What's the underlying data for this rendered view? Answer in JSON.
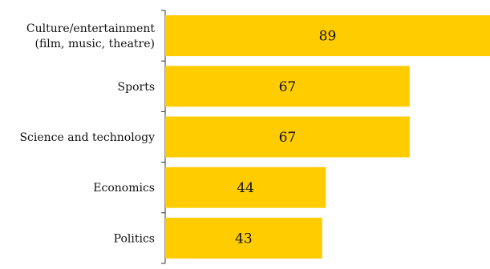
{
  "chart_data": {
    "type": "bar",
    "orientation": "horizontal",
    "categories": [
      [
        "Culture/entertainment",
        "(film, music, theatre)"
      ],
      [
        "Sports"
      ],
      [
        "Science and technology"
      ],
      [
        "Economics"
      ],
      [
        "Politics"
      ]
    ],
    "values": [
      89,
      67,
      67,
      44,
      43
    ],
    "data_labels": [
      "89",
      "67",
      "67",
      "44",
      "43"
    ],
    "title": "",
    "xlabel": "",
    "ylabel": "",
    "xlim": [
      0,
      89
    ],
    "grid": false,
    "legend": "none",
    "bar_color": "#FFCC00",
    "axis_color": "#333333",
    "text_color": "#111111"
  }
}
